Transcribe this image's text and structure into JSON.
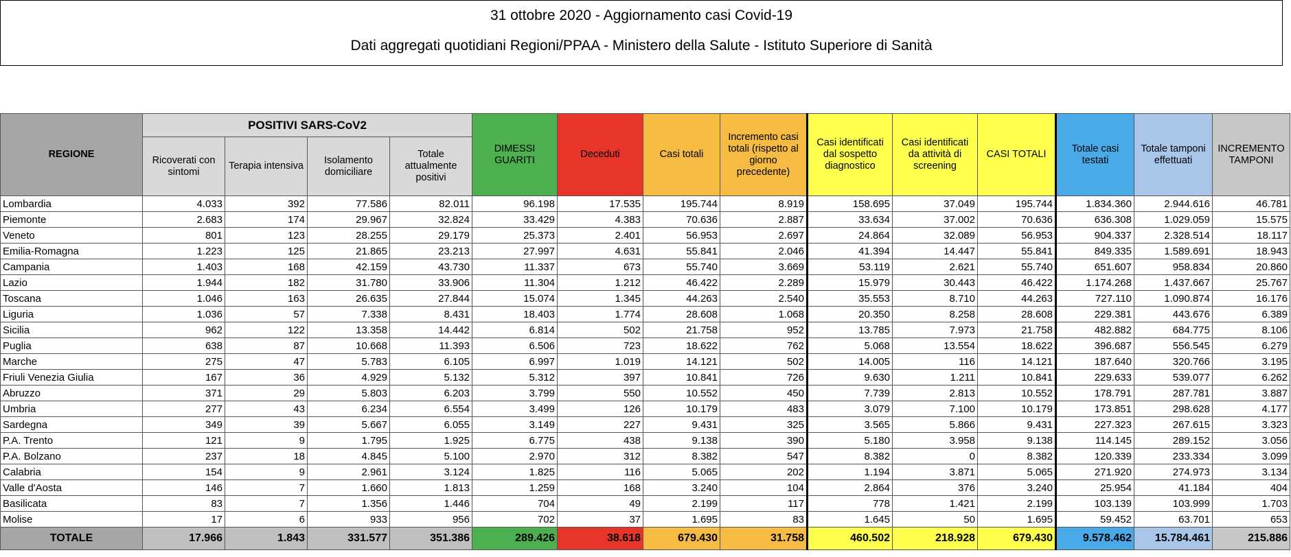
{
  "title": "31 ottobre 2020 - Aggiornamento casi Covid-19",
  "subtitle": "Dati aggregati quotidiani Regioni/PPAA - Ministero della Salute - Istituto Superiore di Sanità",
  "group_header": "POSITIVI SARS-CoV2",
  "colors": {
    "green": "#4caf50",
    "red": "#e8352a",
    "orange": "#f5bb42",
    "yellow": "#ffff4d",
    "blue": "#4aaae8",
    "light_blue": "#a9c6e8",
    "gray": "#d9d9d9"
  },
  "columns": [
    "REGIONE",
    "Ricoverati con sintomi",
    "Terapia intensiva",
    "Isolamento domiciliare",
    "Totale attualmente positivi",
    "DIMESSI GUARITI",
    "Deceduti",
    "Casi totali",
    "Incremento casi totali (rispetto al giorno precedente)",
    "Casi identificati dal sospetto diagnostico",
    "Casi identificati da attività di screening",
    "CASI TOTALI",
    "Totale casi testati",
    "Totale tamponi effettuati",
    "INCREMENTO TAMPONI"
  ],
  "rows": [
    [
      "Lombardia",
      "4.033",
      "392",
      "77.586",
      "82.011",
      "96.198",
      "17.535",
      "195.744",
      "8.919",
      "158.695",
      "37.049",
      "195.744",
      "1.834.360",
      "2.944.616",
      "46.781"
    ],
    [
      "Piemonte",
      "2.683",
      "174",
      "29.967",
      "32.824",
      "33.429",
      "4.383",
      "70.636",
      "2.887",
      "33.634",
      "37.002",
      "70.636",
      "636.308",
      "1.029.059",
      "15.575"
    ],
    [
      "Veneto",
      "801",
      "123",
      "28.255",
      "29.179",
      "25.373",
      "2.401",
      "56.953",
      "2.697",
      "24.864",
      "32.089",
      "56.953",
      "904.337",
      "2.328.514",
      "18.117"
    ],
    [
      "Emilia-Romagna",
      "1.223",
      "125",
      "21.865",
      "23.213",
      "27.997",
      "4.631",
      "55.841",
      "2.046",
      "41.394",
      "14.447",
      "55.841",
      "849.335",
      "1.589.691",
      "18.943"
    ],
    [
      "Campania",
      "1.403",
      "168",
      "42.159",
      "43.730",
      "11.337",
      "673",
      "55.740",
      "3.669",
      "53.119",
      "2.621",
      "55.740",
      "651.607",
      "958.834",
      "20.860"
    ],
    [
      "Lazio",
      "1.944",
      "182",
      "31.780",
      "33.906",
      "11.304",
      "1.212",
      "46.422",
      "2.289",
      "15.979",
      "30.443",
      "46.422",
      "1.174.268",
      "1.437.667",
      "25.767"
    ],
    [
      "Toscana",
      "1.046",
      "163",
      "26.635",
      "27.844",
      "15.074",
      "1.345",
      "44.263",
      "2.540",
      "35.553",
      "8.710",
      "44.263",
      "727.110",
      "1.090.874",
      "16.176"
    ],
    [
      "Liguria",
      "1.036",
      "57",
      "7.338",
      "8.431",
      "18.403",
      "1.774",
      "28.608",
      "1.068",
      "20.350",
      "8.258",
      "28.608",
      "229.381",
      "443.676",
      "6.389"
    ],
    [
      "Sicilia",
      "962",
      "122",
      "13.358",
      "14.442",
      "6.814",
      "502",
      "21.758",
      "952",
      "13.785",
      "7.973",
      "21.758",
      "482.882",
      "684.775",
      "8.106"
    ],
    [
      "Puglia",
      "638",
      "87",
      "10.668",
      "11.393",
      "6.506",
      "723",
      "18.622",
      "762",
      "5.068",
      "13.554",
      "18.622",
      "396.687",
      "556.545",
      "6.279"
    ],
    [
      "Marche",
      "275",
      "47",
      "5.783",
      "6.105",
      "6.997",
      "1.019",
      "14.121",
      "502",
      "14.005",
      "116",
      "14.121",
      "187.640",
      "320.766",
      "3.195"
    ],
    [
      "Friuli Venezia Giulia",
      "167",
      "36",
      "4.929",
      "5.132",
      "5.312",
      "397",
      "10.841",
      "726",
      "9.630",
      "1.211",
      "10.841",
      "229.633",
      "539.077",
      "6.262"
    ],
    [
      "Abruzzo",
      "371",
      "29",
      "5.803",
      "6.203",
      "3.799",
      "550",
      "10.552",
      "450",
      "7.739",
      "2.813",
      "10.552",
      "178.791",
      "287.781",
      "3.887"
    ],
    [
      "Umbria",
      "277",
      "43",
      "6.234",
      "6.554",
      "3.499",
      "126",
      "10.179",
      "483",
      "3.079",
      "7.100",
      "10.179",
      "173.851",
      "298.628",
      "4.177"
    ],
    [
      "Sardegna",
      "349",
      "39",
      "5.667",
      "6.055",
      "3.149",
      "227",
      "9.431",
      "325",
      "3.565",
      "5.866",
      "9.431",
      "227.323",
      "267.615",
      "3.323"
    ],
    [
      "P.A. Trento",
      "121",
      "9",
      "1.795",
      "1.925",
      "6.775",
      "438",
      "9.138",
      "390",
      "5.180",
      "3.958",
      "9.138",
      "114.145",
      "289.152",
      "3.056"
    ],
    [
      "P.A. Bolzano",
      "237",
      "18",
      "4.845",
      "5.100",
      "2.970",
      "312",
      "8.382",
      "547",
      "8.382",
      "0",
      "8.382",
      "120.339",
      "233.334",
      "3.099"
    ],
    [
      "Calabria",
      "154",
      "9",
      "2.961",
      "3.124",
      "1.825",
      "116",
      "5.065",
      "202",
      "1.194",
      "3.871",
      "5.065",
      "271.920",
      "274.973",
      "3.134"
    ],
    [
      "Valle d'Aosta",
      "146",
      "7",
      "1.660",
      "1.813",
      "1.259",
      "168",
      "3.240",
      "104",
      "2.864",
      "376",
      "3.240",
      "25.954",
      "41.184",
      "404"
    ],
    [
      "Basilicata",
      "83",
      "7",
      "1.356",
      "1.446",
      "704",
      "49",
      "2.199",
      "117",
      "778",
      "1.421",
      "2.199",
      "103.139",
      "103.999",
      "1.703"
    ],
    [
      "Molise",
      "17",
      "6",
      "933",
      "956",
      "702",
      "37",
      "1.695",
      "83",
      "1.645",
      "50",
      "1.695",
      "59.452",
      "63.701",
      "653"
    ]
  ],
  "total": [
    "TOTALE",
    "17.966",
    "1.843",
    "331.577",
    "351.386",
    "289.426",
    "38.618",
    "679.430",
    "31.758",
    "460.502",
    "218.928",
    "679.430",
    "9.578.462",
    "15.784.461",
    "215.886"
  ]
}
